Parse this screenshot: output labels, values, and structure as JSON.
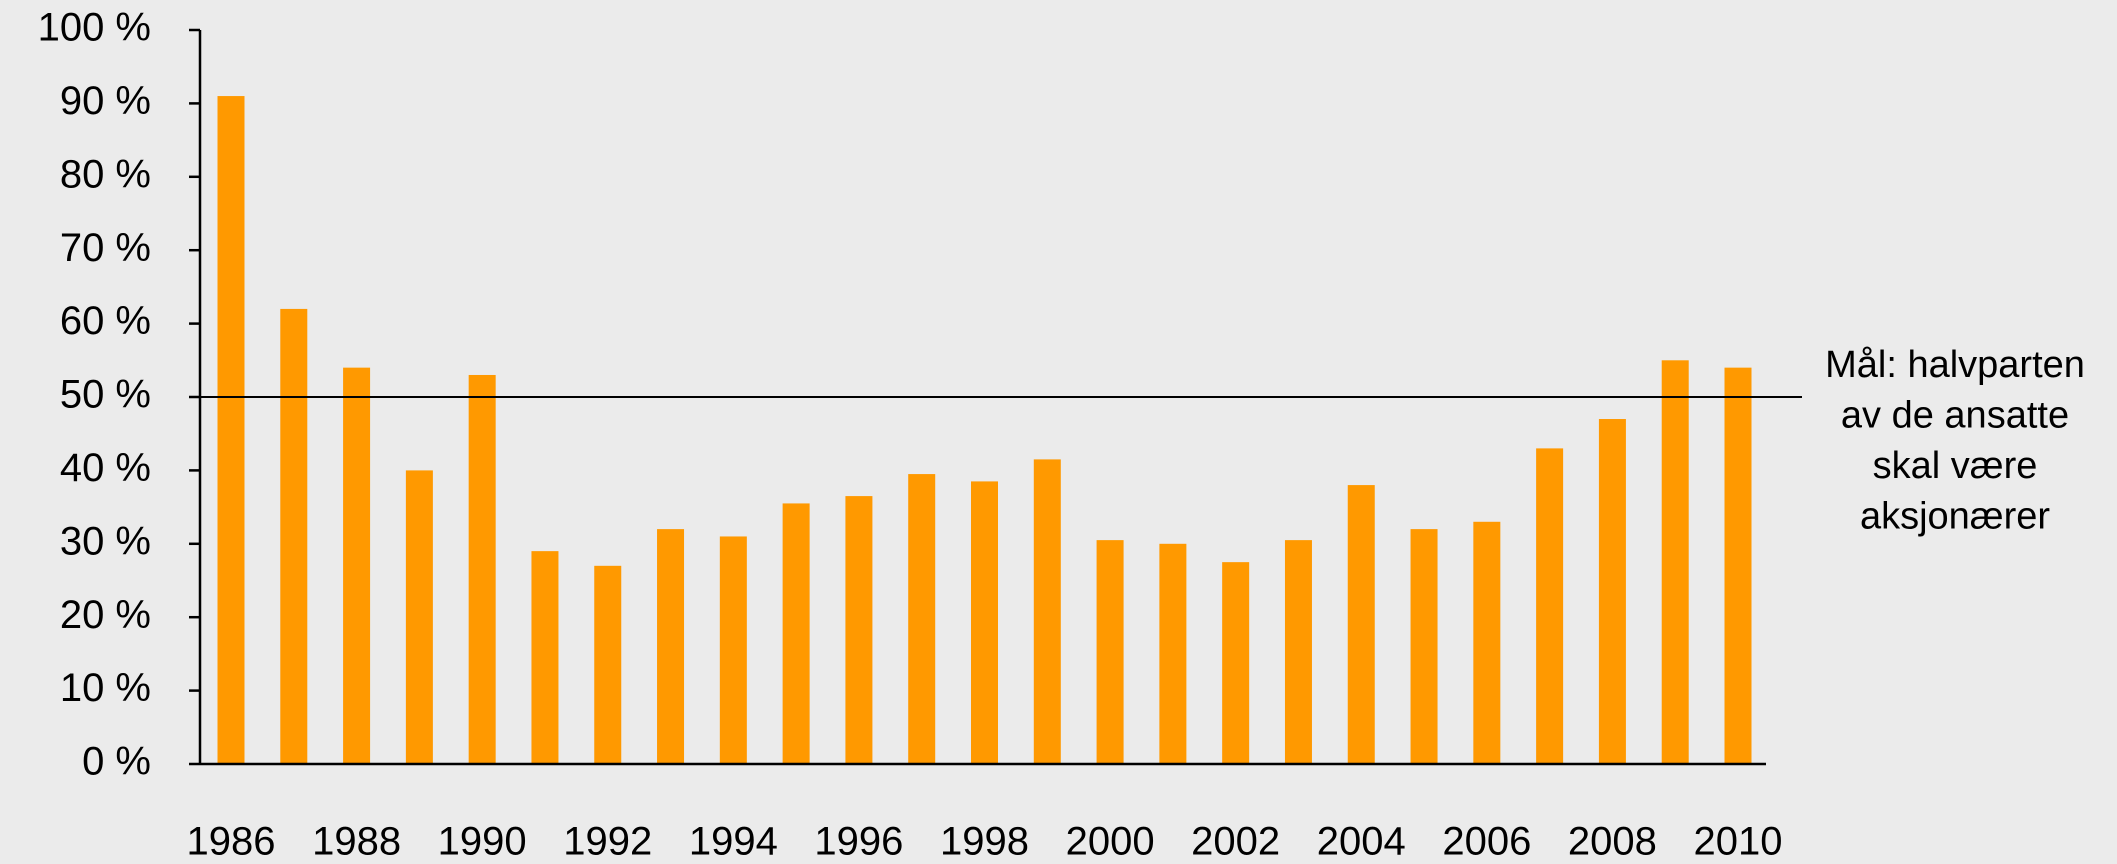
{
  "chart_data": {
    "type": "bar",
    "categories": [
      "1986",
      null,
      "1988",
      null,
      "1990",
      null,
      "1992",
      null,
      "1994",
      null,
      "1996",
      null,
      "1998",
      null,
      "2000",
      null,
      "2002",
      null,
      "2004",
      null,
      "2006",
      null,
      "2008",
      null,
      "2010"
    ],
    "values": [
      91,
      62,
      54,
      40,
      53,
      29,
      27,
      32,
      31,
      35.5,
      36.5,
      39.5,
      38.5,
      41.5,
      30.5,
      30,
      27.5,
      30.5,
      38,
      32,
      33,
      43,
      47,
      55,
      54
    ],
    "color": "#ff9900",
    "ylim": [
      0,
      100
    ],
    "yticks": [
      {
        "value": 0,
        "label": "0 %"
      },
      {
        "value": 10,
        "label": "10 %"
      },
      {
        "value": 20,
        "label": "20 %"
      },
      {
        "value": 30,
        "label": "30 %"
      },
      {
        "value": 40,
        "label": "40 %"
      },
      {
        "value": 50,
        "label": "50 %"
      },
      {
        "value": 60,
        "label": "60 %"
      },
      {
        "value": 70,
        "label": "70 %"
      },
      {
        "value": 80,
        "label": "80 %"
      },
      {
        "value": 90,
        "label": "90 %"
      },
      {
        "value": 100,
        "label": "100 %"
      }
    ],
    "grid": false,
    "target": {
      "value": 50,
      "lines": [
        "Mål: halvparten",
        "av de ansatte",
        "skal være",
        "aksjonærer"
      ]
    }
  }
}
